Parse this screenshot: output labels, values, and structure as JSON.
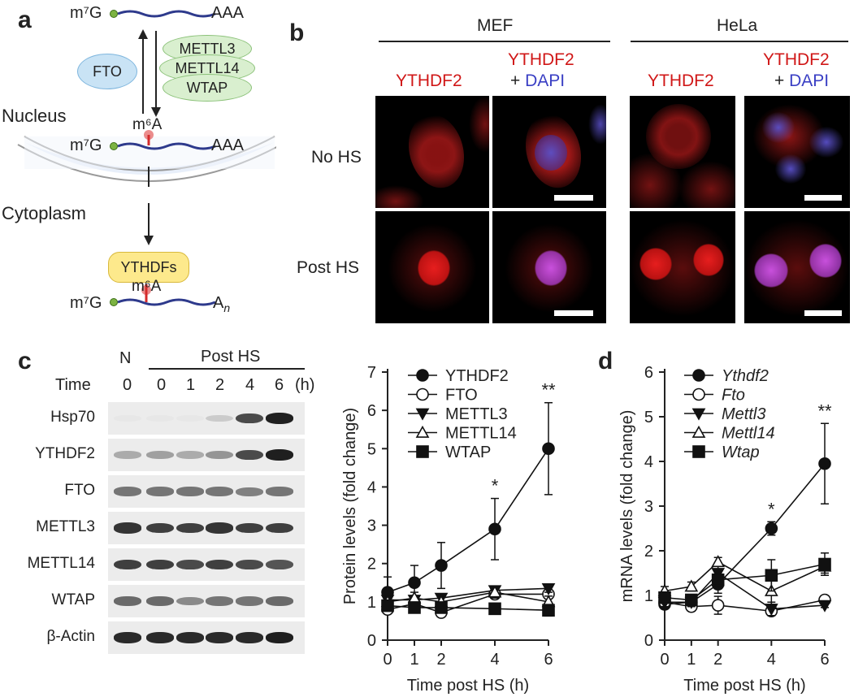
{
  "panel_labels": {
    "a": "a",
    "b": "b",
    "c": "c",
    "d": "d"
  },
  "panel_a": {
    "cap_top": "m⁷G",
    "tail_top": "AAA",
    "fto": "FTO",
    "writers": [
      "METTL3",
      "METTL14",
      "WTAP"
    ],
    "nucleus": "Nucleus",
    "m6a_mid": "m⁶A",
    "cap_mid": "m⁷G",
    "tail_mid": "AAA",
    "cytoplasm": "Cytoplasm",
    "readers": "YTHDFs",
    "m6a_bottom": "m⁶A",
    "cap_bottom": "m⁷G",
    "tail_bottom": "A",
    "tail_bottom_sub": "n",
    "colors": {
      "fto_fill": "#c9e3f5",
      "fto_border": "#7fb6de",
      "writer_fill": "#d9efcf",
      "writer_border": "#8cc27a",
      "reader_fill": "#fde98c",
      "reader_border": "#d8b83b",
      "rna": "#2e3a8c",
      "m6a": "#d52b2b",
      "nucleus_fill": "#e8effa"
    }
  },
  "panel_b": {
    "groups": [
      "MEF",
      "HeLa"
    ],
    "col_stain": "YTHDF2",
    "col_merge_a": "YTHDF2",
    "col_merge_b": "+ ",
    "col_merge_c": "DAPI",
    "rows": [
      "No HS",
      "Post HS"
    ],
    "colors": {
      "red": "#d01717",
      "blue": "#3a3fc4"
    }
  },
  "panel_c_blot": {
    "n_label": "N",
    "post_hs": "Post HS",
    "time_label": "Time",
    "timepoints": [
      "0",
      "0",
      "1",
      "2",
      "4",
      "6"
    ],
    "time_unit": "(h)",
    "rows": [
      {
        "name": "Hsp70",
        "intensity": [
          0.02,
          0.02,
          0.02,
          0.15,
          0.75,
          0.95
        ]
      },
      {
        "name": "YTHDF2",
        "intensity": [
          0.3,
          0.35,
          0.3,
          0.4,
          0.75,
          0.95
        ]
      },
      {
        "name": "FTO",
        "intensity": [
          0.55,
          0.55,
          0.55,
          0.55,
          0.5,
          0.55
        ]
      },
      {
        "name": "METTL3",
        "intensity": [
          0.85,
          0.8,
          0.8,
          0.85,
          0.8,
          0.8
        ]
      },
      {
        "name": "METTL14",
        "intensity": [
          0.8,
          0.8,
          0.75,
          0.8,
          0.75,
          0.7
        ]
      },
      {
        "name": "WTAP",
        "intensity": [
          0.6,
          0.6,
          0.45,
          0.55,
          0.55,
          0.6
        ]
      },
      {
        "name": "β-Actin",
        "intensity": [
          0.9,
          0.9,
          0.9,
          0.9,
          0.9,
          0.95
        ]
      }
    ]
  },
  "chart_data": [
    {
      "type": "line",
      "xlabel": "Time post HS (h)",
      "ylabel": "Protein levels (fold change)",
      "x": [
        0,
        1,
        2,
        4,
        6
      ],
      "xlim": [
        0,
        6
      ],
      "ylim": [
        0,
        7
      ],
      "xticks": [
        "0",
        "1",
        "2",
        "4",
        "6"
      ],
      "yticks": [
        "0",
        "1",
        "2",
        "3",
        "4",
        "5",
        "6",
        "7"
      ],
      "legend_position": "top-left",
      "annotations": [
        {
          "x": 4,
          "text": "*"
        },
        {
          "x": 6,
          "text": "**"
        }
      ],
      "series": [
        {
          "name": "YTHDF2",
          "marker": "filled-circle",
          "values": [
            1.25,
            1.5,
            1.95,
            2.9,
            5.0
          ],
          "err": [
            0.4,
            0.45,
            0.6,
            0.8,
            1.2
          ]
        },
        {
          "name": "FTO",
          "marker": "open-circle",
          "values": [
            0.8,
            0.95,
            0.72,
            1.2,
            1.2
          ],
          "err": [
            0.1,
            0.1,
            0.1,
            0.1,
            0.1
          ]
        },
        {
          "name": "METTL3",
          "marker": "filled-triangle-down",
          "values": [
            1.05,
            1.05,
            1.1,
            1.3,
            1.35
          ],
          "err": [
            0.1,
            0.1,
            0.1,
            0.1,
            0.1
          ]
        },
        {
          "name": "METTL14",
          "marker": "open-triangle-up",
          "values": [
            1.0,
            1.1,
            1.0,
            1.25,
            1.0
          ],
          "err": [
            0.15,
            0.15,
            0.15,
            0.15,
            0.15
          ]
        },
        {
          "name": "WTAP",
          "marker": "filled-square",
          "values": [
            0.9,
            0.85,
            0.85,
            0.82,
            0.78
          ],
          "err": [
            0.1,
            0.1,
            0.1,
            0.05,
            0.15
          ]
        }
      ]
    },
    {
      "type": "line",
      "xlabel": "Time post HS (h)",
      "ylabel": "mRNA levels (fold change)",
      "x": [
        0,
        1,
        2,
        4,
        6
      ],
      "xlim": [
        0,
        6
      ],
      "ylim": [
        0,
        6
      ],
      "xticks": [
        "0",
        "1",
        "2",
        "4",
        "6"
      ],
      "yticks": [
        "0",
        "1",
        "2",
        "3",
        "4",
        "5",
        "6"
      ],
      "legend_position": "top-left",
      "annotations": [
        {
          "x": 4,
          "text": "*"
        },
        {
          "x": 6,
          "text": "**"
        }
      ],
      "series": [
        {
          "name": "Ythdf2",
          "marker": "filled-circle",
          "values": [
            0.8,
            0.85,
            1.25,
            2.5,
            3.95
          ],
          "err": [
            0.1,
            0.1,
            0.2,
            0.15,
            0.9
          ]
        },
        {
          "name": "Fto",
          "marker": "open-circle",
          "values": [
            0.85,
            0.75,
            0.78,
            0.65,
            0.9
          ],
          "err": [
            0.1,
            0.1,
            0.2,
            0.1,
            0.05
          ]
        },
        {
          "name": "Mettl3",
          "marker": "filled-triangle-down",
          "values": [
            0.85,
            0.85,
            1.5,
            0.7,
            0.78
          ],
          "err": [
            0.1,
            0.1,
            0.2,
            0.15,
            0.05
          ]
        },
        {
          "name": "Mettl14",
          "marker": "open-triangle-up",
          "values": [
            1.1,
            1.2,
            1.75,
            1.1,
            1.65
          ],
          "err": [
            0.1,
            0.1,
            0.1,
            0.3,
            0.15
          ]
        },
        {
          "name": "Wtap",
          "marker": "filled-square",
          "values": [
            0.95,
            0.9,
            1.35,
            1.45,
            1.7
          ],
          "err": [
            0.1,
            0.1,
            0.2,
            0.35,
            0.25
          ]
        }
      ]
    }
  ]
}
